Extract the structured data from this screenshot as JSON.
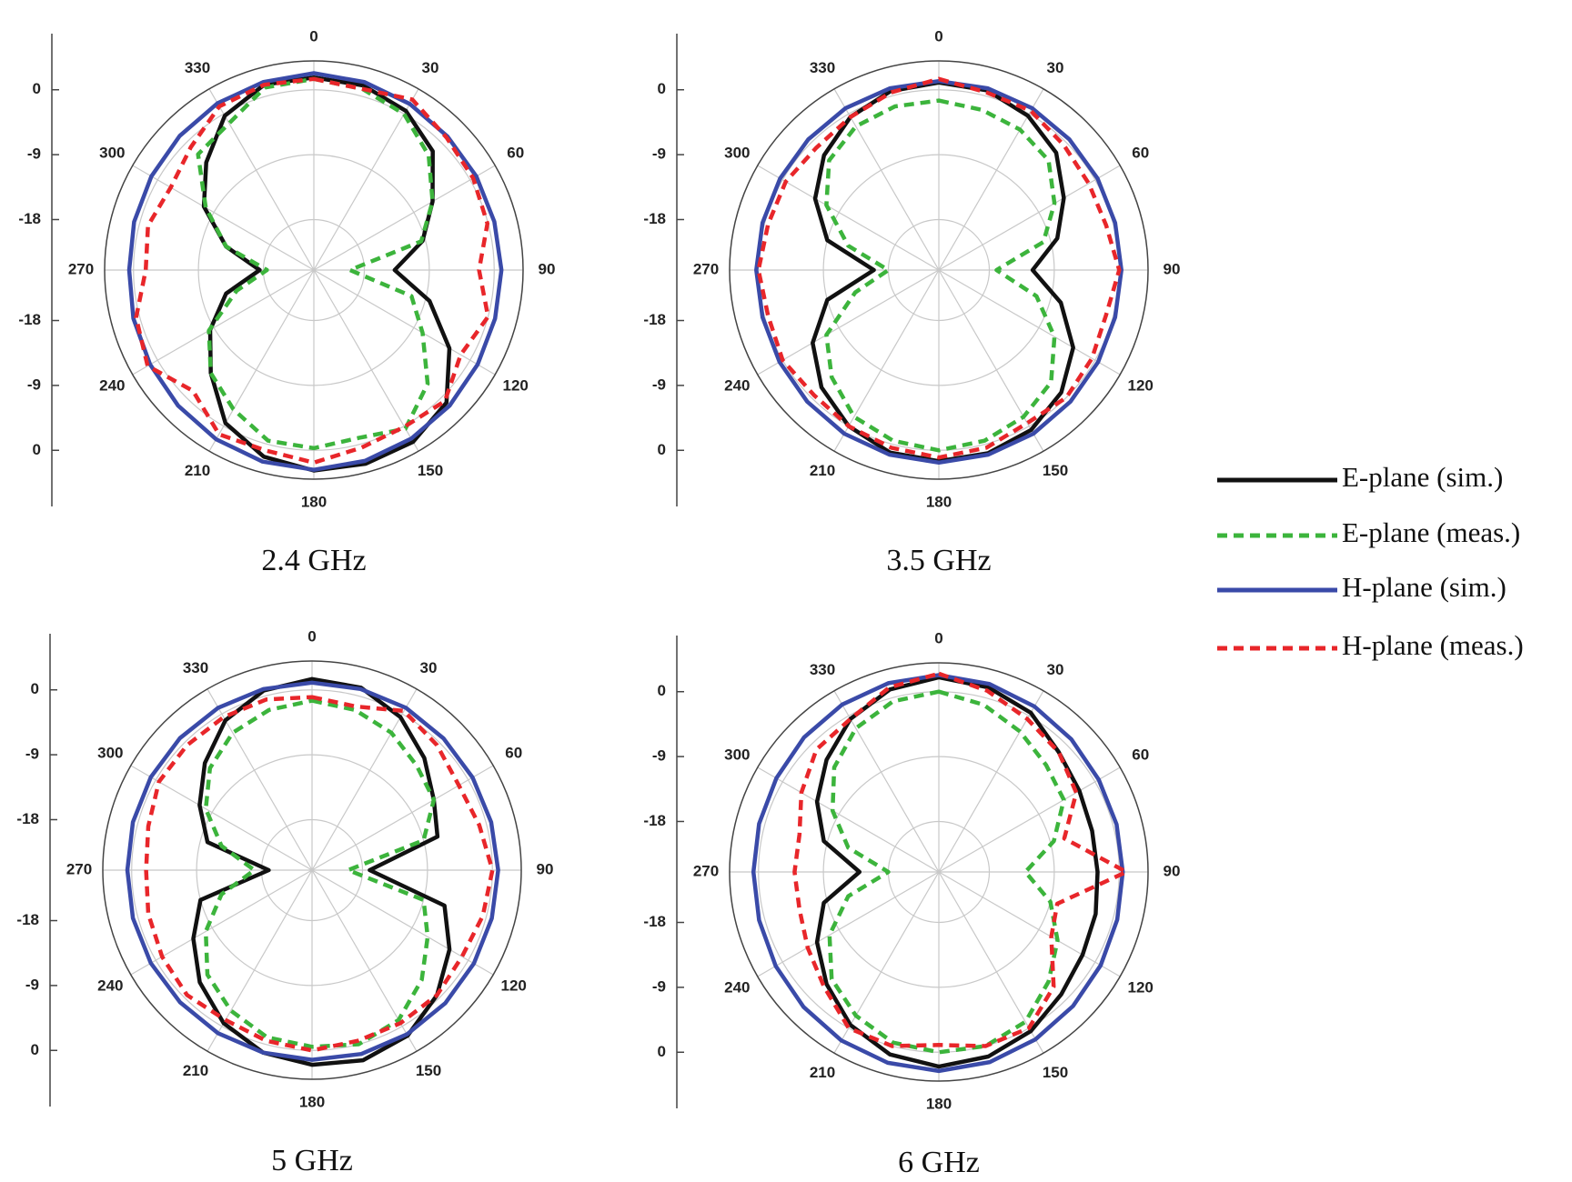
{
  "chart_data": [
    {
      "type": "polar",
      "title": "2.4 GHz",
      "theta": [
        0,
        15,
        30,
        45,
        60,
        75,
        90,
        105,
        120,
        135,
        150,
        165,
        180,
        195,
        210,
        225,
        240,
        255,
        270,
        285,
        300,
        315,
        330,
        345
      ],
      "rlim": [
        -25,
        4
      ],
      "rticks": [
        -18,
        -9,
        0
      ],
      "thetaticks": [
        0,
        30,
        60,
        90,
        120,
        150,
        180,
        210,
        240,
        270,
        300,
        330
      ],
      "series": [
        {
          "name": "E-plane (sim.)",
          "color": "#111111",
          "dash": false,
          "values": [
            1.7,
            1.5,
            0.5,
            -1.7,
            -6,
            -9.4,
            -13.8,
            -8.4,
            -3.3,
            1,
            2.5,
            2.8,
            2.8,
            1.8,
            -0.5,
            -4.8,
            -8.4,
            -12.4,
            -17.5,
            -12.4,
            -7.4,
            -3.9,
            -0.3,
            1.6
          ]
        },
        {
          "name": "E-plane (meas.)",
          "color": "#3cb43c",
          "dash": true,
          "values": [
            1.5,
            1,
            0,
            -2.5,
            -6,
            -9.6,
            -20,
            -11,
            -7.6,
            -2.7,
            0.4,
            -0.9,
            -0.3,
            -0.5,
            -2.7,
            -4.8,
            -8.2,
            -13.9,
            -18.5,
            -12.4,
            -7.7,
            -2.3,
            -1.5,
            1.2
          ]
        },
        {
          "name": "H-plane (sim.)",
          "color": "#3a4aa8",
          "dash": false,
          "values": [
            2.3,
            2,
            1.6,
            1.2,
            1,
            0.9,
            1,
            1,
            1.2,
            1.6,
            2,
            2.4,
            2.7,
            2.5,
            2.1,
            1.6,
            1.2,
            0.9,
            0.6,
            0.8,
            1,
            1.3,
            1.7,
            2
          ]
        },
        {
          "name": "H-plane (meas.)",
          "color": "#e8262a",
          "dash": true,
          "values": [
            1.5,
            1,
            2.3,
            1,
            0.5,
            -0.1,
            -2.1,
            0,
            -1.5,
            0.7,
            0.1,
            0.5,
            1.7,
            0.9,
            1.3,
            -1.3,
            1.6,
            0.5,
            -1.7,
            -1.2,
            -2.1,
            -0.9,
            1.2,
            1.6
          ]
        }
      ]
    },
    {
      "type": "polar",
      "title": "3.5 GHz",
      "theta": [
        0,
        15,
        30,
        45,
        60,
        75,
        90,
        105,
        120,
        135,
        150,
        165,
        180,
        195,
        210,
        225,
        240,
        255,
        270,
        285,
        300,
        315,
        330,
        345
      ],
      "rlim": [
        -25,
        4
      ],
      "rticks": [
        -18,
        -9,
        0
      ],
      "thetaticks": [
        0,
        30,
        60,
        90,
        120,
        150,
        180,
        210,
        240,
        270,
        300,
        330
      ],
      "series": [
        {
          "color": "#111111",
          "dash": false,
          "values": [
            1,
            0.8,
            -0.3,
            -2,
            -5,
            -8,
            -12,
            -7.5,
            -3.5,
            -1,
            0.6,
            1.3,
            1.5,
            1.2,
            0,
            -2,
            -4.8,
            -9,
            -16,
            -9,
            -5.2,
            -2.5,
            -0.5,
            0.7
          ]
        },
        {
          "color": "#3cb43c",
          "dash": true,
          "values": [
            -1.5,
            -2,
            -2.5,
            -3.5,
            -6.5,
            -10,
            -17,
            -11,
            -6.5,
            -3,
            -1.5,
            -0.5,
            0,
            -0.5,
            -1.5,
            -4,
            -7,
            -13,
            -18,
            -12,
            -7,
            -3.5,
            -2,
            -1.5
          ]
        },
        {
          "color": "#3a4aa8",
          "dash": false,
          "values": [
            1.2,
            1.1,
            0.9,
            0.6,
            0.4,
            0.3,
            0.3,
            0.3,
            0.5,
            0.8,
            1.2,
            1.5,
            1.7,
            1.5,
            1.2,
            0.8,
            0.5,
            0.3,
            0.3,
            0.3,
            0.4,
            0.6,
            0.9,
            1.1
          ]
        },
        {
          "color": "#e8262a",
          "dash": true,
          "values": [
            1.5,
            0.5,
            0.5,
            -0.5,
            -1,
            -1,
            0,
            -1,
            -0.5,
            0,
            -0.5,
            0.5,
            1,
            0.5,
            0,
            -0.5,
            0,
            -0.5,
            0,
            -0.5,
            -0.5,
            -1,
            -0.5,
            0.5
          ]
        }
      ]
    },
    {
      "type": "polar",
      "title": "5 GHz",
      "theta": [
        0,
        15,
        30,
        45,
        60,
        75,
        90,
        105,
        120,
        135,
        150,
        165,
        180,
        195,
        210,
        225,
        240,
        255,
        270,
        285,
        300,
        315,
        330,
        345
      ],
      "rlim": [
        -25,
        4
      ],
      "rticks": [
        -18,
        -9,
        0
      ],
      "thetaticks": [
        0,
        30,
        60,
        90,
        120,
        150,
        180,
        210,
        240,
        270,
        300,
        330
      ],
      "series": [
        {
          "color": "#111111",
          "dash": false,
          "values": [
            1.5,
            1.2,
            -0.5,
            -3,
            -5.5,
            -7,
            -17,
            -6,
            -3,
            -0.5,
            1.5,
            2.3,
            2,
            1.2,
            -0.5,
            -3,
            -6,
            -9,
            -19,
            -10,
            -7,
            -4,
            -1,
            0.8
          ]
        },
        {
          "color": "#3cb43c",
          "dash": true,
          "values": [
            -1.5,
            -2,
            -3,
            -4.5,
            -5.5,
            -9,
            -20,
            -9,
            -6.5,
            -3.5,
            -1,
            0,
            -0.5,
            -1,
            -2.5,
            -4.5,
            -8,
            -12,
            -17,
            -12,
            -8,
            -5,
            -3,
            -2
          ]
        },
        {
          "color": "#3a4aa8",
          "dash": false,
          "values": [
            1,
            1,
            1,
            0.8,
            0.7,
            0.7,
            0.8,
            0.8,
            0.9,
            1.1,
            1.3,
            1.4,
            1.3,
            1.2,
            1.1,
            0.9,
            0.8,
            0.7,
            0.6,
            0.7,
            0.8,
            0.9,
            1,
            1
          ]
        },
        {
          "color": "#e8262a",
          "dash": true,
          "values": [
            -1,
            -1.5,
            0.5,
            -0.5,
            -1.5,
            -1,
            0,
            -0.5,
            -1,
            -0.5,
            -0.5,
            -0.5,
            0,
            -0.5,
            -1,
            -0.5,
            -1,
            -1.5,
            -2,
            -1.5,
            -0.5,
            -0.5,
            -0.5,
            -0.5
          ]
        }
      ]
    },
    {
      "type": "polar",
      "title": "6 GHz",
      "theta": [
        0,
        15,
        30,
        45,
        60,
        75,
        90,
        105,
        120,
        135,
        150,
        165,
        180,
        195,
        210,
        225,
        240,
        255,
        270,
        285,
        300,
        315,
        330,
        345
      ],
      "rlim": [
        -25,
        4
      ],
      "rticks": [
        -18,
        -9,
        0
      ],
      "thetaticks": [
        0,
        30,
        60,
        90,
        120,
        150,
        180,
        210,
        240,
        270,
        300,
        330
      ],
      "series": [
        {
          "color": "#111111",
          "dash": false,
          "values": [
            2,
            1.5,
            0.5,
            -1.5,
            -2.5,
            -3,
            -3,
            -2.5,
            -2,
            -1,
            0.5,
            1.5,
            2,
            1.2,
            -0.5,
            -3,
            -5.5,
            -8.5,
            -14,
            -8.5,
            -5.5,
            -3,
            -0.5,
            1.2
          ]
        },
        {
          "color": "#3cb43c",
          "dash": true,
          "values": [
            0,
            -1,
            -2.5,
            -4,
            -5,
            -8.5,
            -13,
            -9,
            -6,
            -3.5,
            -1,
            0,
            0,
            -0.5,
            -2,
            -4,
            -7.5,
            -12,
            -18,
            -12,
            -8,
            -4.5,
            -2,
            -0.5
          ]
        },
        {
          "color": "#3a4aa8",
          "dash": false,
          "values": [
            2.3,
            2,
            1.5,
            1,
            0.6,
            0.5,
            0.5,
            0.6,
            0.9,
            1.3,
            1.8,
            2.3,
            2.6,
            2.4,
            2,
            1.5,
            1.1,
            0.8,
            0.7,
            0.8,
            1,
            1.4,
            1.8,
            2.1
          ]
        },
        {
          "color": "#e8262a",
          "dash": true,
          "values": [
            2.5,
            1,
            -0.5,
            -1.5,
            -3,
            -7,
            1,
            -8,
            -7,
            -2.5,
            0,
            0,
            -1,
            0,
            0,
            -2.5,
            -4,
            -5,
            -5,
            -5,
            -3,
            -1,
            -0.5,
            1.5
          ]
        }
      ]
    }
  ]
}
